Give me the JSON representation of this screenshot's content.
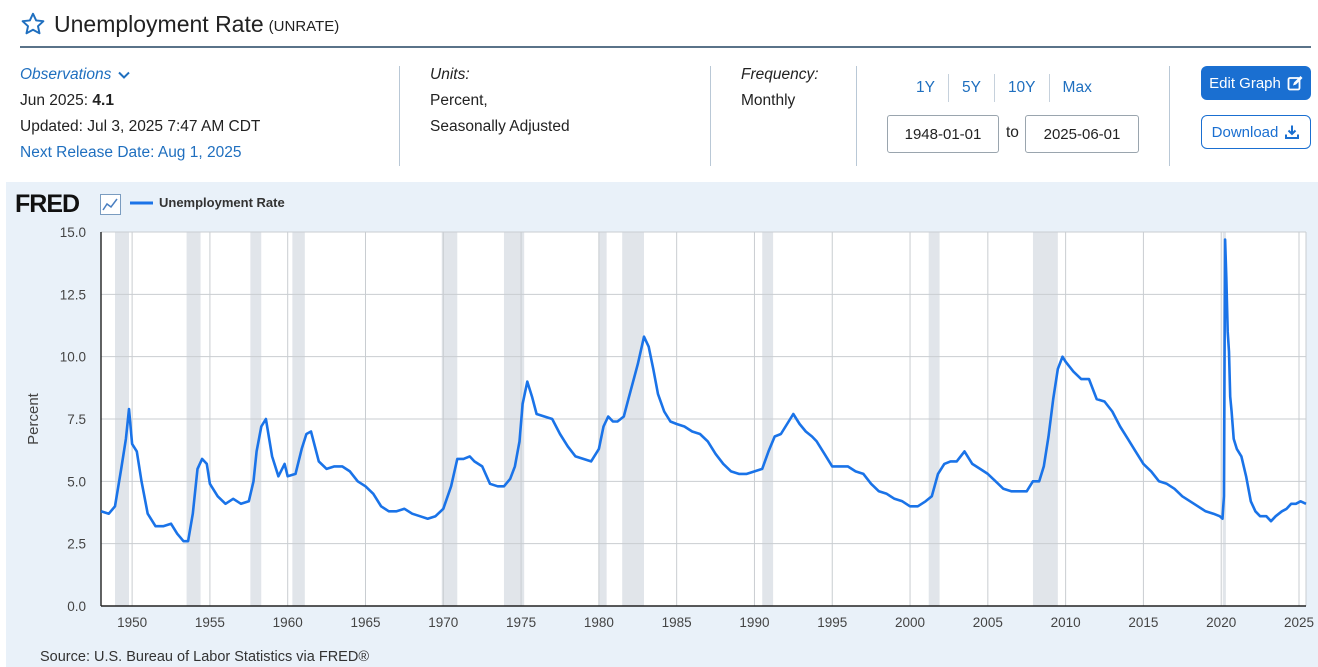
{
  "header": {
    "title": "Unemployment Rate",
    "series_id": "(UNRATE)"
  },
  "observations": {
    "label": "Observations",
    "latest_period": "Jun 2025:",
    "latest_value": "4.1",
    "updated": "Updated: Jul 3, 2025 7:47 AM CDT",
    "next_release": "Next Release Date: Aug 1, 2025"
  },
  "units": {
    "label": "Units:",
    "line1": "Percent,",
    "line2": "Seasonally Adjusted"
  },
  "frequency": {
    "label": "Frequency:",
    "value": "Monthly"
  },
  "range": {
    "buttons": [
      "1Y",
      "5Y",
      "10Y",
      "Max"
    ],
    "start": "1948-01-01",
    "to_label": "to",
    "end": "2025-06-01"
  },
  "actions": {
    "edit_label": "Edit Graph",
    "download_label": "Download"
  },
  "chart_data": {
    "type": "line",
    "brand": "FRED",
    "legend": [
      {
        "name": "Unemployment Rate",
        "color": "#1a73e8"
      }
    ],
    "ylabel": "Percent",
    "ylim": [
      0,
      15
    ],
    "yticks": [
      "0.0",
      "2.5",
      "5.0",
      "7.5",
      "10.0",
      "12.5",
      "15.0"
    ],
    "xlim": [
      1948.0,
      2025.45
    ],
    "xticks": [
      "1950",
      "1955",
      "1960",
      "1965",
      "1970",
      "1975",
      "1980",
      "1985",
      "1990",
      "1995",
      "2000",
      "2005",
      "2010",
      "2015",
      "2020",
      "2025"
    ],
    "grid": true,
    "recessions": [
      [
        1948.9,
        1949.8
      ],
      [
        1953.5,
        1954.4
      ],
      [
        1957.6,
        1958.3
      ],
      [
        1960.3,
        1961.1
      ],
      [
        1969.9,
        1970.9
      ],
      [
        1973.9,
        1975.2
      ],
      [
        1980.0,
        1980.5
      ],
      [
        1981.5,
        1982.9
      ],
      [
        1990.5,
        1991.2
      ],
      [
        2001.2,
        2001.9
      ],
      [
        2007.9,
        2009.5
      ],
      [
        2020.1,
        2020.3
      ]
    ],
    "series": [
      {
        "name": "Unemployment Rate",
        "x": [
          1948.0,
          1948.5,
          1948.9,
          1949.3,
          1949.6,
          1949.8,
          1950.0,
          1950.3,
          1950.6,
          1951.0,
          1951.5,
          1952.0,
          1952.5,
          1952.9,
          1953.3,
          1953.6,
          1953.9,
          1954.2,
          1954.5,
          1954.8,
          1955.0,
          1955.5,
          1956.0,
          1956.5,
          1957.0,
          1957.5,
          1957.8,
          1958.0,
          1958.3,
          1958.6,
          1959.0,
          1959.4,
          1959.8,
          1960.0,
          1960.5,
          1960.9,
          1961.2,
          1961.5,
          1962.0,
          1962.5,
          1963.0,
          1963.5,
          1964.0,
          1964.5,
          1965.0,
          1965.5,
          1966.0,
          1966.5,
          1967.0,
          1967.5,
          1968.0,
          1968.5,
          1969.0,
          1969.5,
          1970.0,
          1970.5,
          1970.9,
          1971.3,
          1971.7,
          1972.0,
          1972.5,
          1973.0,
          1973.5,
          1973.9,
          1974.3,
          1974.6,
          1974.9,
          1975.1,
          1975.4,
          1975.7,
          1976.0,
          1976.5,
          1977.0,
          1977.5,
          1978.0,
          1978.5,
          1979.0,
          1979.5,
          1980.0,
          1980.3,
          1980.6,
          1980.9,
          1981.2,
          1981.6,
          1981.9,
          1982.2,
          1982.5,
          1982.9,
          1983.2,
          1983.5,
          1983.8,
          1984.2,
          1984.6,
          1985.0,
          1985.5,
          1986.0,
          1986.5,
          1987.0,
          1987.5,
          1988.0,
          1988.5,
          1989.0,
          1989.5,
          1990.0,
          1990.5,
          1990.9,
          1991.3,
          1991.7,
          1992.1,
          1992.5,
          1992.9,
          1993.3,
          1993.7,
          1994.0,
          1994.5,
          1995.0,
          1995.5,
          1996.0,
          1996.5,
          1997.0,
          1997.5,
          1998.0,
          1998.5,
          1999.0,
          1999.5,
          2000.0,
          2000.5,
          2001.0,
          2001.4,
          2001.8,
          2002.2,
          2002.6,
          2003.0,
          2003.5,
          2004.0,
          2004.5,
          2005.0,
          2005.5,
          2006.0,
          2006.5,
          2007.0,
          2007.5,
          2007.9,
          2008.3,
          2008.6,
          2008.9,
          2009.2,
          2009.5,
          2009.8,
          2010.0,
          2010.5,
          2011.0,
          2011.5,
          2012.0,
          2012.5,
          2013.0,
          2013.5,
          2014.0,
          2014.5,
          2015.0,
          2015.5,
          2016.0,
          2016.5,
          2017.0,
          2017.5,
          2018.0,
          2018.5,
          2019.0,
          2019.5,
          2019.9,
          2020.08,
          2020.17,
          2020.25,
          2020.33,
          2020.42,
          2020.5,
          2020.58,
          2020.67,
          2020.8,
          2021.0,
          2021.3,
          2021.6,
          2021.9,
          2022.2,
          2022.5,
          2022.9,
          2023.2,
          2023.5,
          2023.9,
          2024.2,
          2024.5,
          2024.8,
          2025.1,
          2025.45
        ],
        "values": [
          3.8,
          3.7,
          4.0,
          5.5,
          6.7,
          7.9,
          6.5,
          6.2,
          5.0,
          3.7,
          3.2,
          3.2,
          3.3,
          2.9,
          2.6,
          2.6,
          3.7,
          5.5,
          5.9,
          5.7,
          4.9,
          4.4,
          4.1,
          4.3,
          4.1,
          4.2,
          5.0,
          6.2,
          7.2,
          7.5,
          6.0,
          5.2,
          5.7,
          5.2,
          5.3,
          6.3,
          6.9,
          7.0,
          5.8,
          5.5,
          5.6,
          5.6,
          5.4,
          5.0,
          4.8,
          4.5,
          4.0,
          3.8,
          3.8,
          3.9,
          3.7,
          3.6,
          3.5,
          3.6,
          3.9,
          4.8,
          5.9,
          5.9,
          6.0,
          5.8,
          5.6,
          4.9,
          4.8,
          4.8,
          5.1,
          5.6,
          6.6,
          8.1,
          9.0,
          8.4,
          7.7,
          7.6,
          7.5,
          6.9,
          6.4,
          6.0,
          5.9,
          5.8,
          6.3,
          7.2,
          7.6,
          7.4,
          7.4,
          7.6,
          8.3,
          9.0,
          9.7,
          10.8,
          10.4,
          9.5,
          8.5,
          7.8,
          7.4,
          7.3,
          7.2,
          7.0,
          6.9,
          6.6,
          6.1,
          5.7,
          5.4,
          5.3,
          5.3,
          5.4,
          5.5,
          6.2,
          6.8,
          6.9,
          7.3,
          7.7,
          7.3,
          7.0,
          6.8,
          6.6,
          6.1,
          5.6,
          5.6,
          5.6,
          5.4,
          5.3,
          4.9,
          4.6,
          4.5,
          4.3,
          4.2,
          4.0,
          4.0,
          4.2,
          4.4,
          5.3,
          5.7,
          5.8,
          5.8,
          6.2,
          5.7,
          5.5,
          5.3,
          5.0,
          4.7,
          4.6,
          4.6,
          4.6,
          5.0,
          5.0,
          5.6,
          6.8,
          8.3,
          9.5,
          10.0,
          9.8,
          9.4,
          9.1,
          9.1,
          8.3,
          8.2,
          7.8,
          7.2,
          6.7,
          6.2,
          5.7,
          5.4,
          5.0,
          4.9,
          4.7,
          4.4,
          4.2,
          4.0,
          3.8,
          3.7,
          3.6,
          3.5,
          4.4,
          14.7,
          13.2,
          11.0,
          10.2,
          8.4,
          7.8,
          6.7,
          6.3,
          6.0,
          5.2,
          4.2,
          3.8,
          3.6,
          3.6,
          3.4,
          3.6,
          3.8,
          3.9,
          4.1,
          4.1,
          4.2,
          4.1
        ]
      }
    ],
    "source": "Source: U.S. Bureau of Labor Statistics via FRED®"
  }
}
